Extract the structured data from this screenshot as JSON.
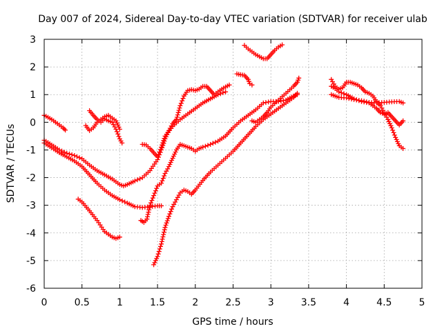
{
  "chart_data": {
    "type": "scatter",
    "title": "Day 007 of 2024, Sidereal Day-to-day VTEC variation (SDTVAR) for receiver ulab",
    "xlabel": "GPS time / hours",
    "ylabel": "SDTVAR / TECUs",
    "xlim": [
      0,
      5
    ],
    "ylim": [
      -6,
      3
    ],
    "xticks": [
      0,
      0.5,
      1,
      1.5,
      2,
      2.5,
      3,
      3.5,
      4,
      4.5,
      5
    ],
    "xtick_labels": [
      "0",
      "0.5",
      "1",
      "1.5",
      "2",
      "2.5",
      "3",
      "3.5",
      "4",
      "4.5",
      "5"
    ],
    "yticks": [
      -6,
      -5,
      -4,
      -3,
      -2,
      -1,
      0,
      1,
      2,
      3
    ],
    "ytick_labels": [
      "-6",
      "-5",
      "-4",
      "-3",
      "-2",
      "-1",
      "0",
      "1",
      "2",
      "3"
    ],
    "grid": true,
    "marker": "+",
    "color": "#ff0000",
    "series": [
      {
        "name": "arc-a",
        "points": [
          [
            0.0,
            0.25
          ],
          [
            0.05,
            0.18
          ],
          [
            0.1,
            0.1
          ],
          [
            0.15,
            0.0
          ],
          [
            0.2,
            -0.1
          ],
          [
            0.25,
            -0.2
          ],
          [
            0.28,
            -0.28
          ]
        ]
      },
      {
        "name": "arc-b",
        "points": [
          [
            0.0,
            -0.65
          ],
          [
            0.1,
            -0.82
          ],
          [
            0.2,
            -1.0
          ],
          [
            0.3,
            -1.12
          ],
          [
            0.4,
            -1.2
          ],
          [
            0.5,
            -1.32
          ],
          [
            0.6,
            -1.55
          ],
          [
            0.7,
            -1.75
          ],
          [
            0.8,
            -1.9
          ],
          [
            0.9,
            -2.05
          ],
          [
            1.0,
            -2.25
          ],
          [
            1.05,
            -2.3
          ],
          [
            1.1,
            -2.25
          ],
          [
            1.2,
            -2.12
          ],
          [
            1.3,
            -2.0
          ],
          [
            1.4,
            -1.75
          ],
          [
            1.5,
            -1.35
          ],
          [
            1.55,
            -1.0
          ],
          [
            1.6,
            -0.6
          ],
          [
            1.65,
            -0.3
          ],
          [
            1.7,
            -0.05
          ],
          [
            1.75,
            0.1
          ],
          [
            1.8,
            0.6
          ],
          [
            1.85,
            0.95
          ],
          [
            1.9,
            1.15
          ],
          [
            1.95,
            1.18
          ],
          [
            2.0,
            1.15
          ],
          [
            2.05,
            1.2
          ],
          [
            2.1,
            1.3
          ],
          [
            2.15,
            1.3
          ],
          [
            2.2,
            1.15
          ],
          [
            2.25,
            1.0
          ],
          [
            2.3,
            1.1
          ],
          [
            2.35,
            1.2
          ],
          [
            2.4,
            1.28
          ],
          [
            2.45,
            1.35
          ]
        ]
      },
      {
        "name": "arc-c",
        "points": [
          [
            0.0,
            -0.75
          ],
          [
            0.1,
            -0.92
          ],
          [
            0.2,
            -1.1
          ],
          [
            0.3,
            -1.25
          ],
          [
            0.4,
            -1.4
          ],
          [
            0.5,
            -1.6
          ],
          [
            0.6,
            -1.9
          ],
          [
            0.7,
            -2.2
          ],
          [
            0.8,
            -2.45
          ],
          [
            0.9,
            -2.65
          ],
          [
            1.0,
            -2.8
          ],
          [
            1.1,
            -2.92
          ],
          [
            1.2,
            -3.05
          ],
          [
            1.3,
            -3.08
          ],
          [
            1.4,
            -3.05
          ],
          [
            1.5,
            -3.02
          ],
          [
            1.55,
            -3.02
          ]
        ]
      },
      {
        "name": "arc-d",
        "points": [
          [
            0.45,
            -2.78
          ],
          [
            0.5,
            -2.88
          ],
          [
            0.6,
            -3.2
          ],
          [
            0.7,
            -3.55
          ],
          [
            0.8,
            -3.95
          ],
          [
            0.9,
            -4.15
          ],
          [
            0.95,
            -4.2
          ],
          [
            1.0,
            -4.15
          ]
        ]
      },
      {
        "name": "arc-e",
        "points": [
          [
            0.6,
            0.42
          ],
          [
            0.65,
            0.25
          ],
          [
            0.7,
            0.1
          ],
          [
            0.75,
            0.0
          ],
          [
            0.8,
            0.12
          ],
          [
            0.85,
            0.05
          ],
          [
            0.9,
            0.0
          ],
          [
            0.95,
            -0.25
          ],
          [
            1.0,
            -0.6
          ],
          [
            1.03,
            -0.75
          ]
        ]
      },
      {
        "name": "arc-f",
        "points": [
          [
            0.55,
            -0.12
          ],
          [
            0.6,
            -0.3
          ],
          [
            0.65,
            -0.2
          ],
          [
            0.7,
            0.0
          ],
          [
            0.75,
            0.1
          ],
          [
            0.8,
            0.2
          ],
          [
            0.85,
            0.25
          ],
          [
            0.9,
            0.15
          ],
          [
            0.95,
            0.05
          ],
          [
            1.0,
            -0.25
          ]
        ]
      },
      {
        "name": "arc-g",
        "points": [
          [
            1.28,
            -3.55
          ],
          [
            1.32,
            -3.62
          ],
          [
            1.36,
            -3.5
          ],
          [
            1.4,
            -3.0
          ],
          [
            1.45,
            -2.65
          ],
          [
            1.5,
            -2.3
          ],
          [
            1.55,
            -2.2
          ],
          [
            1.6,
            -1.85
          ],
          [
            1.65,
            -1.6
          ],
          [
            1.7,
            -1.3
          ],
          [
            1.75,
            -1.0
          ],
          [
            1.8,
            -0.8
          ],
          [
            1.85,
            -0.85
          ],
          [
            1.9,
            -0.9
          ],
          [
            1.95,
            -0.95
          ],
          [
            2.0,
            -1.05
          ],
          [
            2.05,
            -0.95
          ],
          [
            2.1,
            -0.9
          ],
          [
            2.2,
            -0.8
          ],
          [
            2.3,
            -0.68
          ],
          [
            2.4,
            -0.5
          ],
          [
            2.5,
            -0.2
          ],
          [
            2.6,
            0.05
          ],
          [
            2.7,
            0.25
          ],
          [
            2.8,
            0.45
          ],
          [
            2.9,
            0.7
          ],
          [
            3.0,
            0.75
          ],
          [
            3.1,
            0.75
          ],
          [
            3.2,
            0.8
          ],
          [
            3.3,
            0.95
          ],
          [
            3.35,
            1.0
          ]
        ]
      },
      {
        "name": "arc-h",
        "points": [
          [
            1.3,
            -0.8
          ],
          [
            1.35,
            -0.82
          ],
          [
            1.4,
            -0.95
          ],
          [
            1.45,
            -1.1
          ],
          [
            1.5,
            -1.25
          ],
          [
            1.55,
            -0.9
          ],
          [
            1.6,
            -0.5
          ],
          [
            1.7,
            -0.15
          ],
          [
            1.8,
            0.1
          ],
          [
            1.9,
            0.3
          ],
          [
            2.0,
            0.5
          ],
          [
            2.1,
            0.7
          ],
          [
            2.2,
            0.85
          ],
          [
            2.3,
            1.0
          ],
          [
            2.4,
            1.1
          ]
        ]
      },
      {
        "name": "arc-i",
        "points": [
          [
            1.45,
            -5.15
          ],
          [
            1.5,
            -4.85
          ],
          [
            1.55,
            -4.4
          ],
          [
            1.6,
            -3.8
          ],
          [
            1.65,
            -3.4
          ],
          [
            1.7,
            -3.05
          ],
          [
            1.75,
            -2.8
          ],
          [
            1.8,
            -2.55
          ],
          [
            1.85,
            -2.45
          ],
          [
            1.9,
            -2.5
          ],
          [
            1.95,
            -2.6
          ],
          [
            2.0,
            -2.45
          ],
          [
            2.1,
            -2.1
          ],
          [
            2.2,
            -1.8
          ],
          [
            2.3,
            -1.55
          ],
          [
            2.4,
            -1.3
          ],
          [
            2.5,
            -1.05
          ],
          [
            2.6,
            -0.75
          ],
          [
            2.7,
            -0.45
          ],
          [
            2.8,
            -0.15
          ],
          [
            2.9,
            0.1
          ],
          [
            3.0,
            0.3
          ],
          [
            3.1,
            0.5
          ],
          [
            3.2,
            0.7
          ],
          [
            3.3,
            0.9
          ],
          [
            3.35,
            1.05
          ]
        ]
      },
      {
        "name": "arc-j",
        "points": [
          [
            2.55,
            1.75
          ],
          [
            2.6,
            1.72
          ],
          [
            2.65,
            1.7
          ],
          [
            2.7,
            1.55
          ],
          [
            2.72,
            1.4
          ],
          [
            2.75,
            1.35
          ]
        ]
      },
      {
        "name": "arc-k",
        "points": [
          [
            2.65,
            2.78
          ],
          [
            2.7,
            2.65
          ],
          [
            2.8,
            2.45
          ],
          [
            2.9,
            2.3
          ],
          [
            2.95,
            2.3
          ],
          [
            3.0,
            2.45
          ],
          [
            3.05,
            2.6
          ],
          [
            3.1,
            2.72
          ],
          [
            3.15,
            2.8
          ]
        ]
      },
      {
        "name": "arc-l",
        "points": [
          [
            2.75,
            0.05
          ],
          [
            2.8,
            0.0
          ],
          [
            2.85,
            0.1
          ],
          [
            2.9,
            0.2
          ],
          [
            2.95,
            0.35
          ],
          [
            3.0,
            0.55
          ],
          [
            3.1,
            0.8
          ],
          [
            3.2,
            1.05
          ],
          [
            3.3,
            1.3
          ],
          [
            3.35,
            1.45
          ],
          [
            3.37,
            1.6
          ]
        ]
      },
      {
        "name": "arc-m",
        "points": [
          [
            3.8,
            1.55
          ],
          [
            3.85,
            1.3
          ],
          [
            3.9,
            1.2
          ],
          [
            3.95,
            1.25
          ],
          [
            4.0,
            1.45
          ],
          [
            4.05,
            1.45
          ],
          [
            4.1,
            1.4
          ],
          [
            4.15,
            1.35
          ],
          [
            4.2,
            1.25
          ],
          [
            4.25,
            1.1
          ],
          [
            4.3,
            1.05
          ],
          [
            4.35,
            0.95
          ],
          [
            4.4,
            0.75
          ],
          [
            4.45,
            0.6
          ],
          [
            4.5,
            0.35
          ],
          [
            4.55,
            0.1
          ],
          [
            4.6,
            -0.2
          ],
          [
            4.65,
            -0.55
          ],
          [
            4.7,
            -0.85
          ],
          [
            4.75,
            -0.95
          ]
        ]
      },
      {
        "name": "arc-n",
        "points": [
          [
            3.8,
            1.0
          ],
          [
            3.85,
            0.95
          ],
          [
            3.9,
            0.9
          ],
          [
            4.0,
            0.88
          ],
          [
            4.1,
            0.82
          ],
          [
            4.2,
            0.78
          ],
          [
            4.3,
            0.72
          ],
          [
            4.4,
            0.7
          ],
          [
            4.5,
            0.72
          ],
          [
            4.6,
            0.74
          ],
          [
            4.7,
            0.75
          ],
          [
            4.75,
            0.7
          ]
        ]
      },
      {
        "name": "arc-o",
        "points": [
          [
            3.8,
            1.3
          ],
          [
            3.85,
            1.22
          ],
          [
            3.9,
            1.1
          ],
          [
            4.0,
            1.0
          ],
          [
            4.1,
            0.85
          ],
          [
            4.2,
            0.75
          ],
          [
            4.3,
            0.7
          ],
          [
            4.35,
            0.6
          ],
          [
            4.4,
            0.5
          ],
          [
            4.45,
            0.35
          ],
          [
            4.5,
            0.3
          ],
          [
            4.55,
            0.35
          ],
          [
            4.6,
            0.2
          ],
          [
            4.65,
            0.05
          ],
          [
            4.7,
            -0.1
          ],
          [
            4.75,
            0.05
          ]
        ]
      }
    ]
  }
}
